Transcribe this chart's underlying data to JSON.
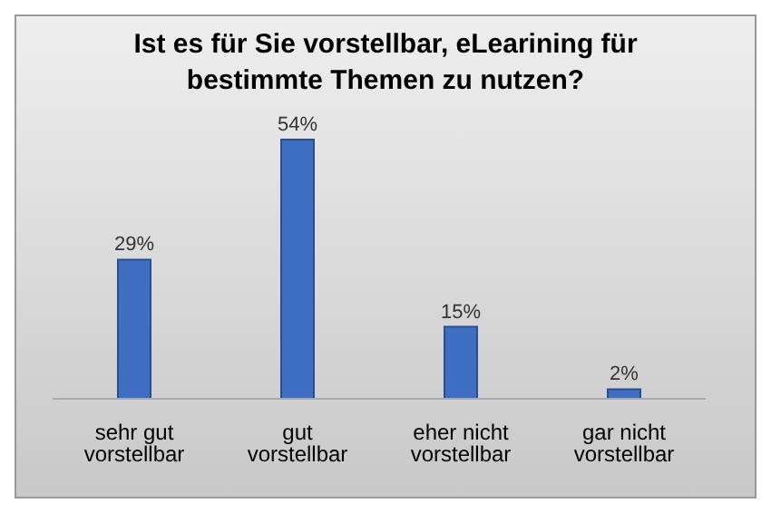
{
  "chart_data": {
    "type": "bar",
    "title": "Ist es für Sie vorstellbar, eLearining für bestimmte Themen zu nutzen?",
    "categories": [
      "sehr gut vorstellbar",
      "gut vorstellbar",
      "eher nicht vorstellbar",
      "gar nicht vorstellbar"
    ],
    "values": [
      29,
      54,
      15,
      2
    ],
    "value_labels": [
      "29%",
      "54%",
      "15%",
      "2%"
    ],
    "color": "#3f6fc0"
  }
}
